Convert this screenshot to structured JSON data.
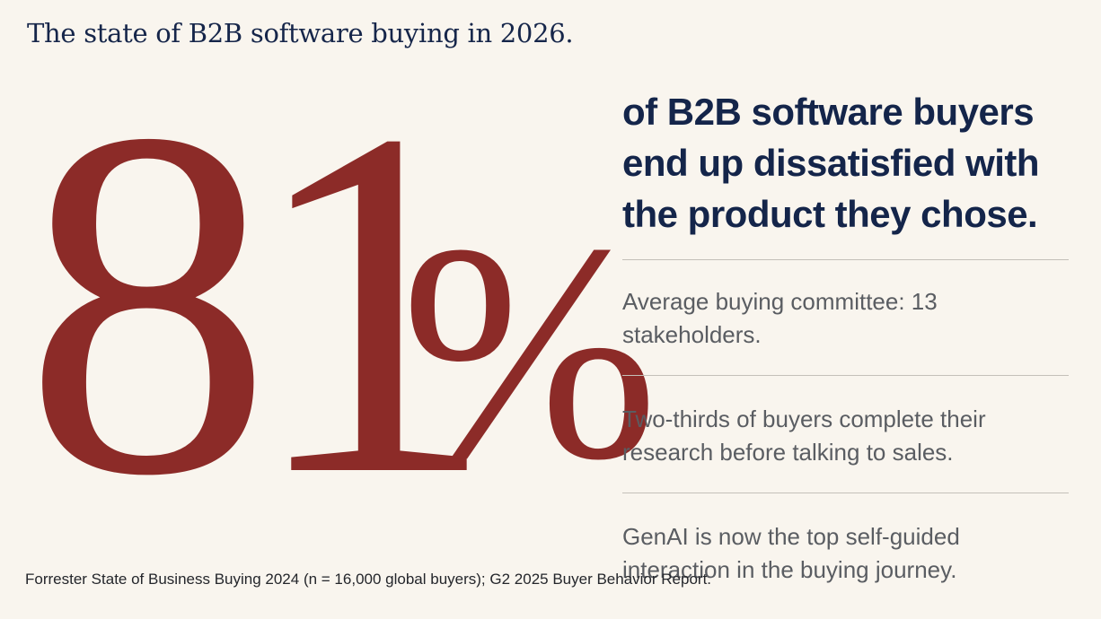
{
  "title": "The state of B2B software buying in 2026.",
  "stat": {
    "number": "81",
    "percent_sign": "%"
  },
  "headline": "of B2B software buyers end up dissatisfied with the product they chose.",
  "facts": [
    "Average buying committee: 13 stakeholders.",
    "Two-thirds of buyers complete their research before talking to sales.",
    "GenAI is now the top self-guided interaction in the buying journey."
  ],
  "source": "Forrester State of Business Buying 2024 (n = 16,000 global buyers); G2 2025 Buyer Behavior Report.",
  "colors": {
    "background": "#f9f5ee",
    "accent": "#8c2b28",
    "navy": "#14254a",
    "body_text": "#5a5d62"
  }
}
